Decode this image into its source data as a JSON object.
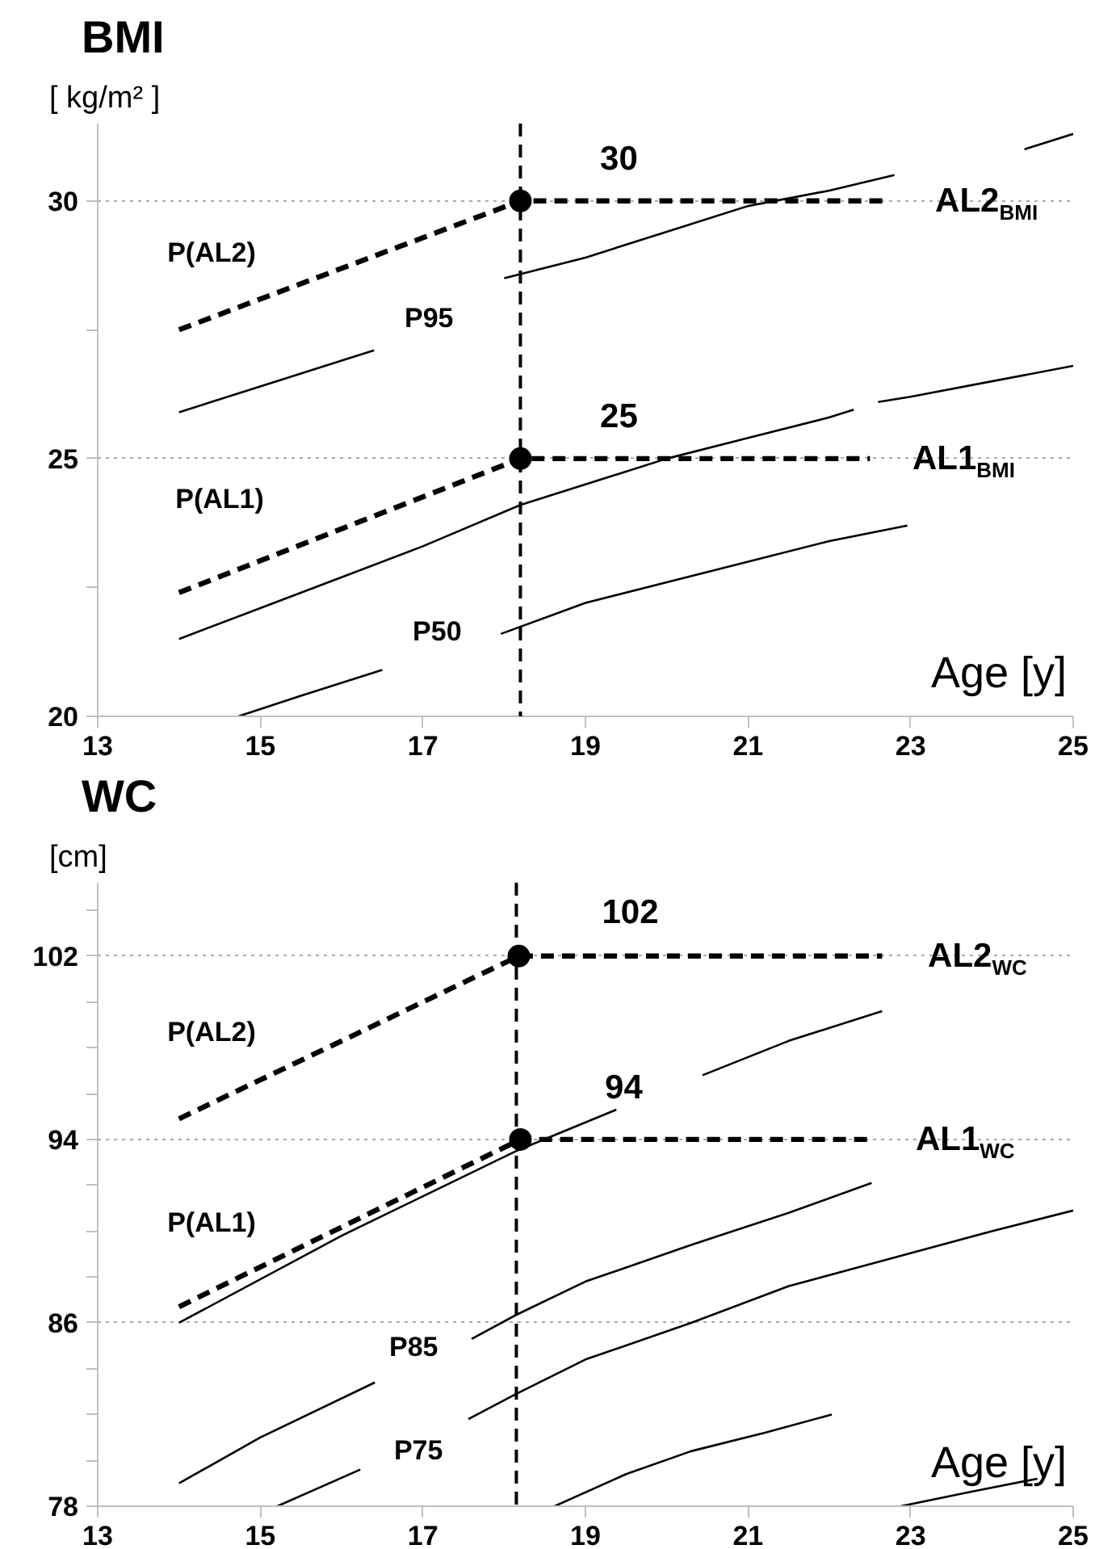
{
  "chart_data": [
    {
      "type": "line",
      "title": "BMI",
      "ylabel": "[ kg/m² ]",
      "xlabel": "Age [y]",
      "xlim": [
        13,
        25
      ],
      "ylim": [
        20,
        31.5
      ],
      "xticks": [
        13,
        15,
        17,
        19,
        21,
        23,
        25
      ],
      "yticks": [
        20,
        {
          "value": 22.5,
          "label": null
        },
        25,
        {
          "value": 27.5,
          "label": null
        },
        30
      ],
      "grid": "y",
      "series": [
        {
          "color": "#000000",
          "line_style": "dashed",
          "x": [
            14,
            18.2,
            22.7
          ],
          "values": [
            27.5,
            30,
            30
          ]
        },
        {
          "color": "#000000",
          "line_style": "dashed",
          "x": [
            14,
            18.2,
            22.5
          ],
          "values": [
            22.4,
            25,
            25
          ]
        },
        {
          "color": "#000000",
          "line_style": "solid",
          "x": [
            14,
            15,
            16,
            16.4,
            17.2,
            18.0,
            19,
            20,
            21,
            22,
            22.8,
            23.6,
            24.4,
            25
          ],
          "values": [
            25.9,
            26.4,
            26.9,
            27.1,
            null,
            28.5,
            28.9,
            29.4,
            29.9,
            30.2,
            30.5,
            null,
            31.0,
            31.3
          ]
        },
        {
          "color": "#000000",
          "line_style": "solid",
          "x": [
            14,
            15,
            16,
            17,
            18.2,
            19,
            20,
            21,
            22,
            22.3,
            22.45,
            22.6,
            23,
            24,
            25
          ],
          "values": [
            21.5,
            22.1,
            22.7,
            23.3,
            24.1,
            24.5,
            25.0,
            25.4,
            25.8,
            25.95,
            null,
            26.1,
            26.2,
            26.5,
            26.8
          ]
        },
        {
          "color": "#000000",
          "line_style": "solid",
          "x": [
            14.73,
            15.5,
            16.5,
            17.2,
            17.96,
            19,
            20,
            21,
            22,
            22.96
          ],
          "values": [
            20.0,
            20.4,
            20.9,
            null,
            21.6,
            22.2,
            22.6,
            23.0,
            23.4,
            23.7
          ]
        },
        {
          "type": "scatter",
          "color": "#000000",
          "marker": "circle",
          "x": [
            18.2,
            18.2
          ],
          "values": [
            30,
            25
          ]
        }
      ],
      "ref_lines": [
        {
          "axis": "x",
          "value": 18.2,
          "line_style": "dashed",
          "color": "#000000"
        }
      ],
      "annotations": [
        {
          "text": "30",
          "x": 18.2,
          "y": 30
        },
        {
          "text": "25",
          "x": 18.2,
          "y": 25
        },
        {
          "text": "P(AL2)",
          "x": 14.4,
          "y": 27.74
        },
        {
          "text": "P(AL1)",
          "x": 14.5,
          "y": 22.71
        },
        {
          "text": "P95",
          "x": 16.4,
          "y": 27.1
        },
        {
          "text": "P50",
          "x": 16.5,
          "y": 20.9
        },
        {
          "text": "AL2$_{BMI}$",
          "x": 22.7,
          "y": 30
        },
        {
          "text": "AL1$_{BMI}$",
          "x": 22.5,
          "y": 25
        }
      ]
    },
    {
      "type": "line",
      "title": "WC",
      "ylabel": "[cm]",
      "xlabel": "Age [y]",
      "xlim": [
        13,
        25
      ],
      "ylim": [
        78,
        105.2
      ],
      "xticks": [
        13,
        15,
        17,
        19,
        21,
        23,
        25
      ],
      "yticks": [
        78,
        {
          "value": 80,
          "label": null
        },
        {
          "value": 82,
          "label": null
        },
        {
          "value": 84,
          "label": null
        },
        86,
        {
          "value": 88,
          "label": null
        },
        {
          "value": 90,
          "label": null
        },
        {
          "value": 92,
          "label": null
        },
        94,
        {
          "value": 96,
          "label": null
        },
        {
          "value": 98,
          "label": null
        },
        {
          "value": 100,
          "label": null
        },
        102,
        {
          "value": 104,
          "label": null
        }
      ],
      "grid": "y",
      "series": [
        {
          "color": "#000000",
          "line_style": "dashed",
          "x": [
            14,
            18.18,
            22.65
          ],
          "values": [
            94.9,
            102,
            102
          ]
        },
        {
          "color": "#000000",
          "line_style": "dashed",
          "x": [
            14,
            18.2,
            22.5
          ],
          "values": [
            86.7,
            94,
            94
          ]
        },
        {
          "color": "#000000",
          "line_style": "solid",
          "x": [
            14,
            16,
            18.15,
            19.38,
            19.9,
            20.44,
            21.5,
            22.65
          ],
          "values": [
            86.0,
            89.8,
            93.5,
            95.3,
            null,
            96.8,
            98.3,
            99.6
          ]
        },
        {
          "color": "#000000",
          "line_style": "solid",
          "x": [
            14,
            15,
            16.41,
            17.0,
            17.6,
            18.15,
            19,
            20.3,
            21.5,
            22.52
          ],
          "values": [
            79.0,
            81.0,
            83.4,
            null,
            85.3,
            86.35,
            87.8,
            89.4,
            90.8,
            92.1
          ]
        },
        {
          "color": "#000000",
          "line_style": "solid",
          "x": [
            15.21,
            16.23,
            16.9,
            17.56,
            18.15,
            19,
            20.3,
            21.5,
            22.96,
            24,
            25
          ],
          "values": [
            78.0,
            79.6,
            null,
            81.8,
            82.9,
            84.4,
            86.0,
            87.6,
            89.0,
            90.0,
            90.9
          ]
        },
        {
          "color": "#000000",
          "line_style": "solid",
          "x": [
            18.62,
            19.5,
            20.3,
            21.2,
            22.03
          ],
          "values": [
            78.0,
            79.4,
            80.4,
            81.2,
            82.0
          ]
        },
        {
          "color": "#000000",
          "line_style": "solid",
          "x": [
            22.88,
            23.7,
            24.56
          ],
          "values": [
            78.0,
            78.6,
            79.2
          ]
        },
        {
          "type": "scatter",
          "color": "#000000",
          "marker": "circle",
          "x": [
            18.18,
            18.2
          ],
          "values": [
            102,
            94
          ]
        }
      ],
      "ref_lines": [
        {
          "axis": "x",
          "value": 18.15,
          "line_style": "dashed",
          "color": "#000000"
        }
      ],
      "annotations": [
        {
          "text": "102",
          "x": 18.18,
          "y": 102
        },
        {
          "text": "94",
          "x": 18.2,
          "y": 94
        },
        {
          "text": "P(AL2)",
          "x": 14.4,
          "y": 95.58
        },
        {
          "text": "P(AL1)",
          "x": 14.4,
          "y": 87.4
        },
        {
          "text": "P85",
          "x": 16.41,
          "y": 83.4
        },
        {
          "text": "P75",
          "x": 16.23,
          "y": 79.6
        },
        {
          "text": "AL2$_{WC}$",
          "x": 22.65,
          "y": 102
        },
        {
          "text": "AL1$_{WC}$",
          "x": 22.5,
          "y": 94
        }
      ]
    }
  ]
}
